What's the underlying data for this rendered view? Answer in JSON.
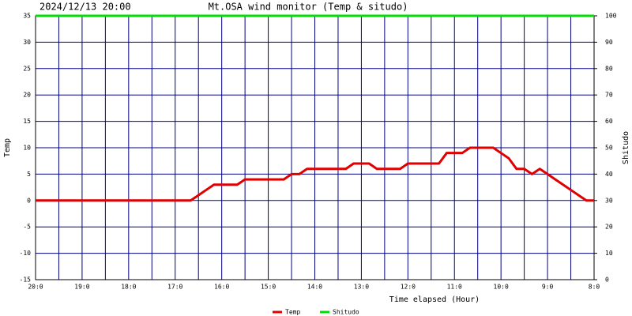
{
  "chart_data": {
    "type": "line",
    "title": "2024/12/13 20:00",
    "subtitle": "Mt.OSA wind monitor (Temp & situdo)",
    "x_label": "Time elapsed (Hour)",
    "y_label": "Temp",
    "y2_label": "Shitudo",
    "x": [
      0,
      10,
      20,
      30,
      40,
      50,
      60,
      70,
      80,
      90,
      100,
      110,
      120,
      130,
      140,
      150,
      160,
      170,
      180,
      190,
      200,
      210,
      220,
      230,
      240,
      250,
      260,
      270,
      280,
      290,
      300,
      310,
      320,
      330,
      340,
      350,
      360,
      370,
      380,
      390,
      400,
      410,
      420,
      430,
      440,
      450,
      460,
      470,
      480,
      490,
      500,
      510,
      520,
      530,
      540,
      550,
      560,
      570,
      580,
      590,
      600,
      610,
      620,
      630,
      640,
      650,
      660,
      670,
      680,
      690,
      700,
      710,
      720
    ],
    "series": [
      {
        "name": "Temp",
        "color": "#e00000",
        "values": [
          0,
          0,
          0,
          0,
          0,
          0,
          0,
          0,
          0,
          0,
          0,
          0,
          0,
          0,
          0,
          0,
          0,
          0,
          0,
          0,
          0,
          1,
          2,
          3,
          3,
          3,
          3,
          4,
          4,
          4,
          4,
          4,
          4,
          5,
          5,
          6,
          6,
          6,
          6,
          6,
          6,
          7,
          7,
          7,
          6,
          6,
          6,
          6,
          7,
          7,
          7,
          7,
          7,
          9,
          9,
          9,
          10,
          10,
          10,
          10,
          9,
          8,
          6,
          6,
          5,
          6,
          5,
          4,
          3,
          2,
          1,
          0,
          0
        ]
      },
      {
        "name": "Shitudo",
        "color": "#00e000",
        "axis": "y2",
        "values": [
          100,
          100,
          100,
          100,
          100,
          100,
          100,
          100,
          100,
          100,
          100,
          100,
          100,
          100,
          100,
          100,
          100,
          100,
          100,
          100,
          100,
          100,
          100,
          100,
          100,
          100,
          100,
          100,
          100,
          100,
          100,
          100,
          100,
          100,
          100,
          100,
          100,
          100,
          100,
          100,
          100,
          100,
          100,
          100,
          100,
          100,
          100,
          100,
          100,
          100,
          100,
          100,
          100,
          100,
          100,
          100,
          100,
          100,
          100,
          100,
          100,
          100,
          100,
          100,
          100,
          100,
          100,
          100,
          100,
          100,
          100,
          100,
          100
        ]
      }
    ],
    "xlim": [
      0,
      720
    ],
    "xticks": [
      {
        "value": 0,
        "label": "20:0"
      },
      {
        "value": 60,
        "label": "19:0"
      },
      {
        "value": 120,
        "label": "18:0"
      },
      {
        "value": 180,
        "label": "17:0"
      },
      {
        "value": 240,
        "label": "16:0"
      },
      {
        "value": 300,
        "label": "15:0"
      },
      {
        "value": 360,
        "label": "14:0"
      },
      {
        "value": 420,
        "label": "13:0"
      },
      {
        "value": 480,
        "label": "12:0"
      },
      {
        "value": 540,
        "label": "11:0"
      },
      {
        "value": 600,
        "label": "10:0"
      },
      {
        "value": 660,
        "label": "9:0"
      },
      {
        "value": 720,
        "label": "8:0"
      }
    ],
    "ylim": [
      -15,
      35
    ],
    "yticks": [
      -15,
      -10,
      -5,
      0,
      5,
      10,
      15,
      20,
      25,
      30,
      35
    ],
    "y2lim": [
      0,
      100
    ],
    "y2ticks": [
      0,
      10,
      20,
      30,
      40,
      50,
      60,
      70,
      80,
      90,
      100
    ],
    "grid": true,
    "grid_color": "#000080"
  }
}
